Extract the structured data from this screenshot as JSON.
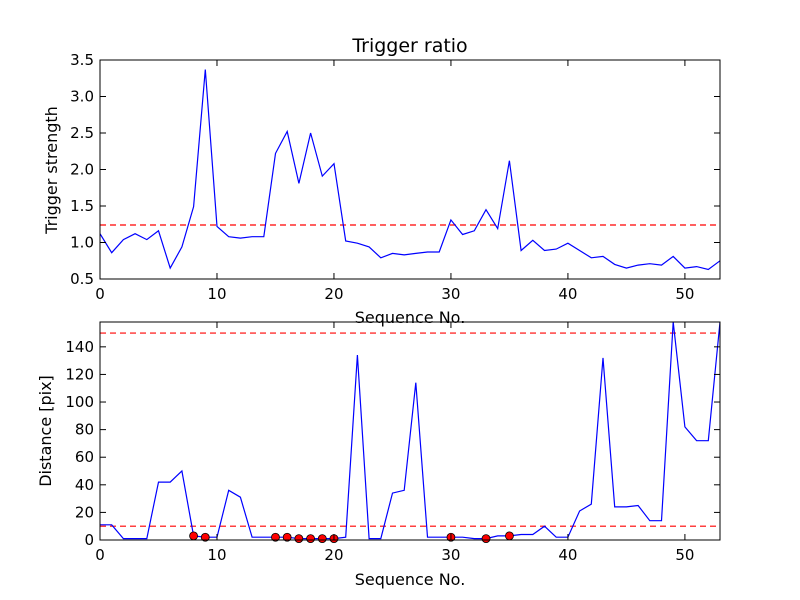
{
  "chart_data": [
    {
      "type": "line",
      "title": "Trigger ratio",
      "xlabel": "Sequence No.",
      "ylabel": "Trigger strength",
      "xlim": [
        0,
        53
      ],
      "ylim": [
        0.5,
        3.5
      ],
      "xticks": [
        "0",
        "10",
        "20",
        "30",
        "40",
        "50"
      ],
      "yticks": [
        "0.5",
        "1.0",
        "1.5",
        "2.0",
        "2.5",
        "3.0",
        "3.5"
      ],
      "grid": false,
      "series": [
        {
          "color": "#0000ff",
          "x": [
            0,
            1,
            2,
            3,
            4,
            5,
            6,
            7,
            8,
            9,
            10,
            11,
            12,
            13,
            14,
            15,
            16,
            17,
            18,
            19,
            20,
            21,
            22,
            23,
            24,
            25,
            26,
            27,
            28,
            29,
            30,
            31,
            32,
            33,
            34,
            35,
            36,
            37,
            38,
            39,
            40,
            41,
            42,
            43,
            44,
            45,
            46,
            47,
            48,
            49,
            50,
            51,
            52,
            53
          ],
          "values": [
            1.12,
            0.86,
            1.04,
            1.12,
            1.04,
            1.16,
            0.65,
            0.94,
            1.49,
            3.37,
            1.22,
            1.08,
            1.06,
            1.08,
            1.08,
            2.22,
            2.52,
            1.81,
            2.5,
            1.91,
            2.08,
            1.02,
            0.99,
            0.94,
            0.79,
            0.85,
            0.83,
            0.85,
            0.87,
            0.87,
            1.31,
            1.11,
            1.16,
            1.45,
            1.19,
            2.12,
            0.89,
            1.03,
            0.89,
            0.91,
            0.99,
            0.89,
            0.79,
            0.81,
            0.7,
            0.65,
            0.69,
            0.71,
            0.69,
            0.81,
            0.65,
            0.67,
            0.63,
            0.75
          ]
        }
      ],
      "hlines": [
        {
          "y": 1.24,
          "color": "#ff0000",
          "style": "dashed"
        }
      ]
    },
    {
      "type": "line",
      "title": "",
      "xlabel": "Sequence No.",
      "ylabel": "Distance [pix]",
      "xlim": [
        0,
        53
      ],
      "ylim": [
        0,
        158
      ],
      "xticks": [
        "0",
        "10",
        "20",
        "30",
        "40",
        "50"
      ],
      "yticks": [
        "0",
        "20",
        "40",
        "60",
        "80",
        "100",
        "120",
        "140"
      ],
      "grid": false,
      "series": [
        {
          "color": "#0000ff",
          "x": [
            0,
            1,
            2,
            3,
            4,
            5,
            6,
            7,
            8,
            9,
            10,
            11,
            12,
            13,
            14,
            15,
            16,
            17,
            18,
            19,
            20,
            21,
            22,
            23,
            24,
            25,
            26,
            27,
            28,
            29,
            30,
            31,
            32,
            33,
            34,
            35,
            36,
            37,
            38,
            39,
            40,
            41,
            42,
            43,
            44,
            45,
            46,
            47,
            48,
            49,
            50,
            51,
            52,
            53
          ],
          "values": [
            11,
            11,
            1,
            1,
            1,
            42,
            42,
            50,
            3,
            2,
            2,
            36,
            31,
            2,
            2,
            2,
            2,
            1,
            1,
            1,
            1,
            2,
            134,
            1,
            1,
            34,
            36,
            114,
            2,
            2,
            2,
            2,
            1,
            1,
            3,
            3,
            4,
            4,
            10,
            2,
            2,
            21,
            26,
            132,
            24,
            24,
            25,
            14,
            14,
            158,
            82,
            72,
            72,
            158
          ]
        },
        {
          "color": "#ff0000",
          "marker": "circle",
          "x": [
            8,
            9,
            15,
            16,
            17,
            18,
            19,
            20,
            30,
            33,
            35
          ],
          "values": [
            3,
            2,
            2,
            2,
            1,
            1,
            1,
            1,
            2,
            1,
            3
          ]
        }
      ],
      "hlines": [
        {
          "y": 10,
          "color": "#ff0000",
          "style": "dashed"
        },
        {
          "y": 150,
          "color": "#ff0000",
          "style": "dashed"
        }
      ]
    }
  ]
}
